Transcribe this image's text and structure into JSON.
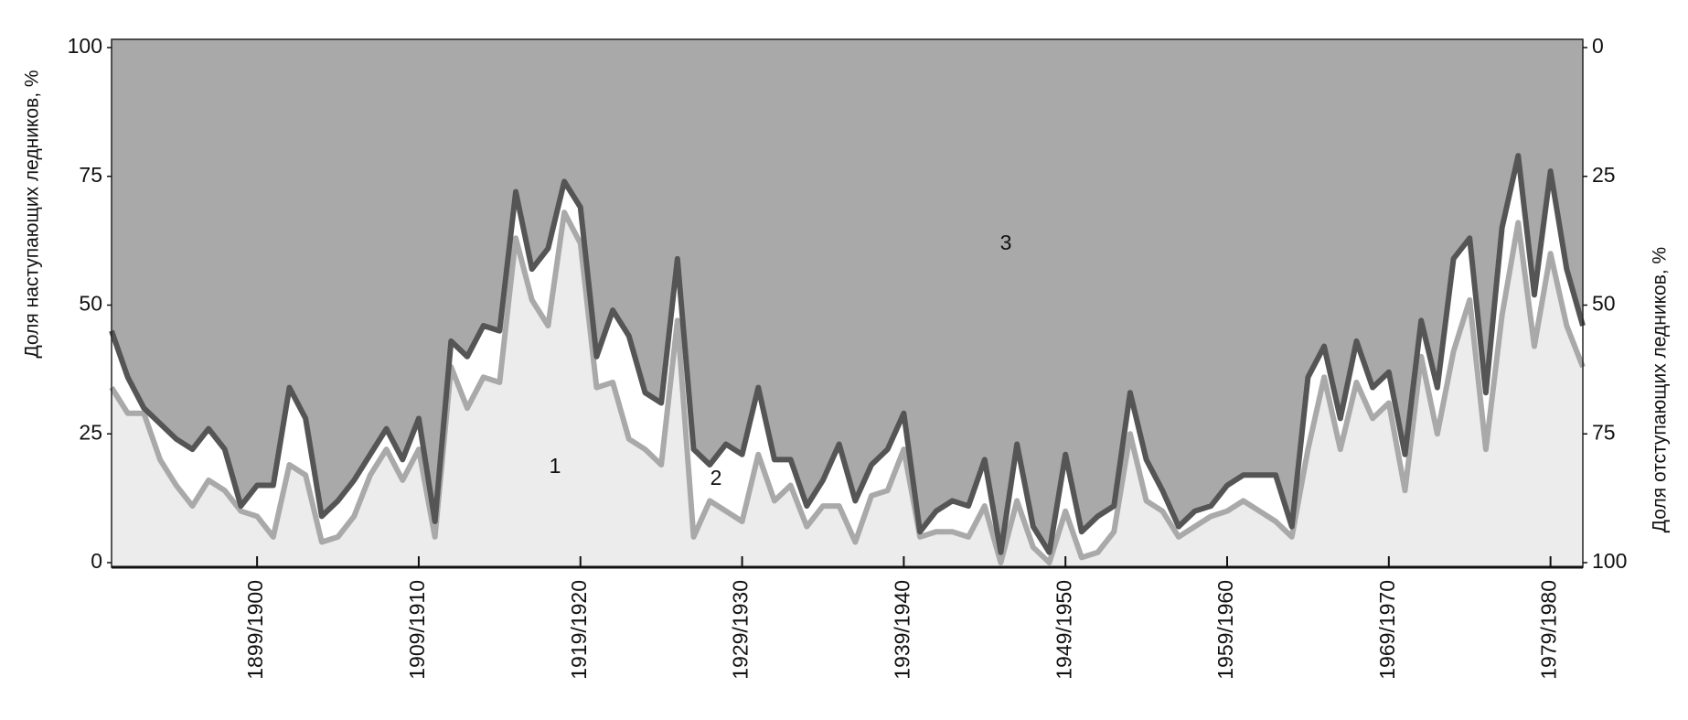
{
  "chart_data": {
    "type": "stacked-area",
    "y_label": "Доля наступающих ледников, %",
    "y2_label": "Доля отступающих ледников, %",
    "x": [
      1891,
      1892,
      1893,
      1894,
      1895,
      1896,
      1897,
      1898,
      1899,
      1900,
      1901,
      1902,
      1903,
      1904,
      1905,
      1906,
      1907,
      1908,
      1909,
      1910,
      1911,
      1912,
      1913,
      1914,
      1915,
      1916,
      1917,
      1918,
      1919,
      1920,
      1921,
      1922,
      1923,
      1924,
      1925,
      1926,
      1927,
      1928,
      1929,
      1930,
      1931,
      1932,
      1933,
      1934,
      1935,
      1936,
      1937,
      1938,
      1939,
      1940,
      1941,
      1942,
      1943,
      1944,
      1945,
      1946,
      1947,
      1948,
      1949,
      1950,
      1951,
      1952,
      1953,
      1954,
      1955,
      1956,
      1957,
      1958,
      1959,
      1960,
      1961,
      1962,
      1963,
      1964,
      1965,
      1966,
      1967,
      1968,
      1969,
      1970,
      1971,
      1972,
      1973,
      1974,
      1975,
      1976,
      1977,
      1978,
      1979,
      1980,
      1981,
      1982
    ],
    "series": [
      {
        "name": "1",
        "color": "#ececec",
        "line_color": "#a9a9a9",
        "values": [
          34,
          29,
          29,
          20,
          15,
          11,
          16,
          14,
          10,
          9,
          5,
          19,
          17,
          4,
          5,
          9,
          17,
          22,
          16,
          22,
          5,
          38,
          30,
          36,
          35,
          63,
          51,
          46,
          68,
          62,
          34,
          35,
          24,
          22,
          19,
          47,
          5,
          12,
          10,
          8,
          21,
          12,
          15,
          7,
          11,
          11,
          4,
          13,
          14,
          22,
          5,
          6,
          6,
          5,
          11,
          0,
          12,
          3,
          0,
          10,
          1,
          2,
          6,
          25,
          12,
          10,
          5,
          7,
          9,
          10,
          12,
          10,
          8,
          5,
          22,
          36,
          22,
          35,
          28,
          31,
          14,
          40,
          25,
          41,
          51,
          22,
          48,
          66,
          42,
          60,
          46,
          38
        ]
      },
      {
        "name": "2",
        "color": "#ffffff",
        "values": [
          11,
          7,
          1,
          7,
          9,
          11,
          10,
          8,
          1,
          6,
          10,
          15,
          11,
          5,
          7,
          7,
          4,
          4,
          4,
          6,
          3,
          5,
          10,
          10,
          10,
          9,
          6,
          15,
          6,
          7,
          6,
          14,
          20,
          11,
          12,
          12,
          17,
          7,
          13,
          13,
          13,
          8,
          5,
          4,
          5,
          12,
          8,
          6,
          8,
          7,
          1,
          4,
          6,
          6,
          9,
          2,
          11,
          4,
          2,
          11,
          5,
          7,
          5,
          8,
          8,
          4,
          2,
          3,
          2,
          5,
          5,
          7,
          9,
          2,
          14,
          6,
          6,
          8,
          6,
          6,
          7,
          7,
          9,
          18,
          12,
          11,
          17,
          13,
          10,
          16,
          11,
          8
        ]
      },
      {
        "name": "3",
        "color": "#a9a9a9",
        "line_color": "#555555",
        "axis": "y2",
        "values": [
          55,
          64,
          70,
          73,
          76,
          78,
          74,
          78,
          89,
          85,
          85,
          66,
          72,
          91,
          88,
          84,
          79,
          74,
          80,
          72,
          92,
          57,
          60,
          54,
          55,
          28,
          43,
          39,
          26,
          31,
          60,
          51,
          56,
          67,
          69,
          41,
          78,
          81,
          77,
          79,
          66,
          80,
          80,
          89,
          84,
          77,
          88,
          81,
          78,
          71,
          94,
          90,
          88,
          89,
          80,
          98,
          77,
          93,
          98,
          79,
          94,
          91,
          89,
          67,
          80,
          86,
          93,
          90,
          89,
          85,
          83,
          83,
          83,
          93,
          64,
          58,
          72,
          57,
          66,
          63,
          79,
          53,
          66,
          41,
          37,
          67,
          35,
          21,
          48,
          24,
          43,
          54
        ]
      }
    ],
    "xlim": [
      1891,
      1982
    ],
    "xticks": [
      {
        "value": 1900,
        "label": "1899/1900"
      },
      {
        "value": 1910,
        "label": "1909/1910"
      },
      {
        "value": 1920,
        "label": "1919/1920"
      },
      {
        "value": 1930,
        "label": "1929/1930"
      },
      {
        "value": 1940,
        "label": "1939/1940"
      },
      {
        "value": 1950,
        "label": "1949/1950"
      },
      {
        "value": 1960,
        "label": "1959/1960"
      },
      {
        "value": 1970,
        "label": "1969/1970"
      },
      {
        "value": 1980,
        "label": "1979/1980"
      }
    ],
    "ylim": [
      0,
      100
    ],
    "yticks": [
      0,
      25,
      50,
      75,
      100
    ],
    "y2lim": [
      100,
      0
    ],
    "y2ticks": [
      0,
      25,
      50,
      75,
      100
    ]
  }
}
